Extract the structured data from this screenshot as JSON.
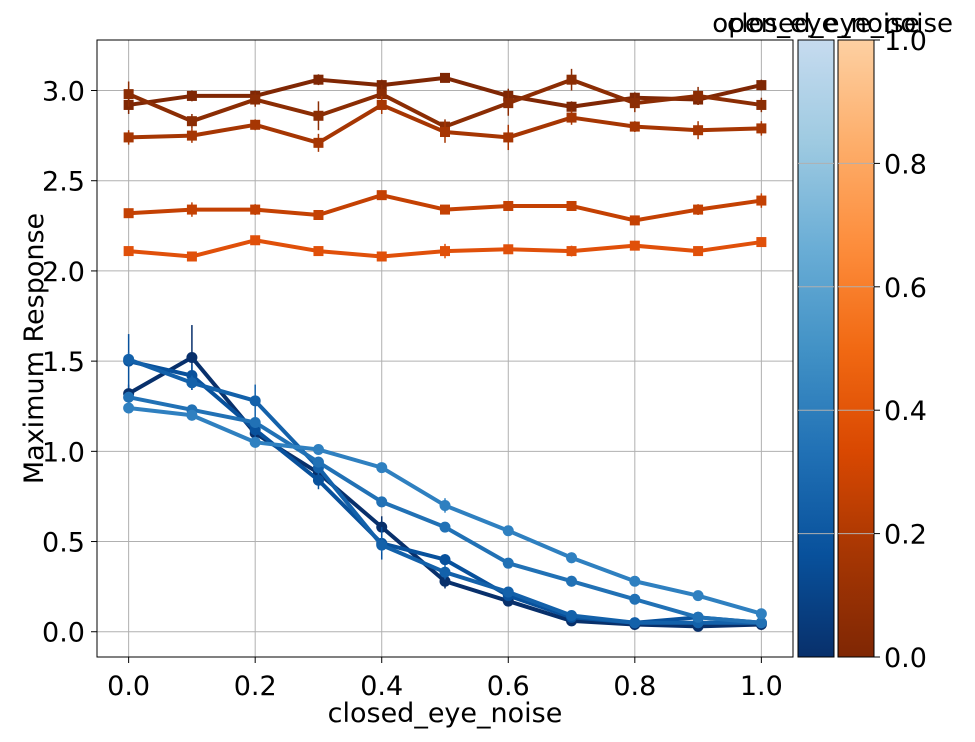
{
  "chart_data": {
    "type": "line",
    "xlabel": "closed_eye_noise",
    "ylabel": "Maximum Response",
    "xlim": [
      -0.05,
      1.05
    ],
    "ylim": [
      -0.14,
      3.28
    ],
    "x": [
      0.0,
      0.1,
      0.2,
      0.3,
      0.4,
      0.5,
      0.6,
      0.7,
      0.8,
      0.9,
      1.0
    ],
    "x_ticks": [
      "0.0",
      "0.2",
      "0.4",
      "0.6",
      "0.8",
      "1.0"
    ],
    "x_tick_values": [
      0.0,
      0.2,
      0.4,
      0.6,
      0.8,
      1.0
    ],
    "y_ticks": [
      "0.0",
      "0.5",
      "1.0",
      "1.5",
      "2.0",
      "2.5",
      "3.0"
    ],
    "y_tick_values": [
      0.0,
      0.5,
      1.0,
      1.5,
      2.0,
      2.5,
      3.0
    ],
    "grid": true,
    "colorbars": [
      {
        "label": "open_eye_noise",
        "range": [
          0.0,
          1.0
        ],
        "colormap": "Blues",
        "stops": [
          "#08306b",
          "#08519c",
          "#2171b5",
          "#4292c6",
          "#6baed6",
          "#9ecae1",
          "#c6dbef"
        ],
        "ticks": []
      },
      {
        "label": "closed_eye_noise",
        "range": [
          0.0,
          1.0
        ],
        "colormap": "Oranges",
        "stops": [
          "#7f2704",
          "#a63603",
          "#d94801",
          "#f16913",
          "#fd8d3c",
          "#fdae6b",
          "#fdd0a2"
        ],
        "ticks": [
          "0.0",
          "0.2",
          "0.4",
          "0.6",
          "0.8",
          "1.0"
        ],
        "tick_values": [
          0.0,
          0.2,
          0.4,
          0.6,
          0.8,
          1.0
        ]
      }
    ],
    "series": [
      {
        "color": "#7f2704",
        "marker": "square",
        "values": [
          2.92,
          2.97,
          2.97,
          3.06,
          3.03,
          3.07,
          2.97,
          2.91,
          2.96,
          2.95,
          3.03
        ],
        "errors": [
          0.05,
          0.03,
          0.03,
          0.03,
          0.03,
          0.02,
          0.04,
          0.03,
          0.03,
          0.03,
          0.03
        ]
      },
      {
        "color": "#8b2d04",
        "marker": "square",
        "values": [
          2.98,
          2.83,
          2.95,
          2.86,
          2.98,
          2.8,
          2.93,
          3.06,
          2.93,
          2.97,
          2.92
        ],
        "errors": [
          0.07,
          0.04,
          0.04,
          0.08,
          0.05,
          0.04,
          0.07,
          0.06,
          0.05,
          0.05,
          0.04
        ]
      },
      {
        "color": "#a63603",
        "marker": "square",
        "values": [
          2.74,
          2.75,
          2.81,
          2.71,
          2.92,
          2.77,
          2.74,
          2.85,
          2.8,
          2.78,
          2.79
        ],
        "errors": [
          0.04,
          0.04,
          0.03,
          0.05,
          0.05,
          0.06,
          0.07,
          0.04,
          0.03,
          0.05,
          0.04
        ]
      },
      {
        "color": "#c44103",
        "marker": "square",
        "values": [
          2.32,
          2.34,
          2.34,
          2.31,
          2.42,
          2.34,
          2.36,
          2.36,
          2.28,
          2.34,
          2.39
        ],
        "errors": [
          0.02,
          0.04,
          0.03,
          0.02,
          0.02,
          0.02,
          0.02,
          0.02,
          0.02,
          0.03,
          0.04
        ]
      },
      {
        "color": "#e0500a",
        "marker": "square",
        "values": [
          2.11,
          2.08,
          2.17,
          2.11,
          2.08,
          2.11,
          2.12,
          2.11,
          2.14,
          2.11,
          2.16
        ],
        "errors": [
          0.02,
          0.02,
          0.02,
          0.02,
          0.02,
          0.04,
          0.02,
          0.03,
          0.02,
          0.02,
          0.02
        ]
      },
      {
        "color": "#08306b",
        "marker": "circle",
        "values": [
          1.32,
          1.52,
          1.1,
          0.88,
          0.58,
          0.28,
          0.17,
          0.06,
          0.04,
          0.03,
          0.04
        ],
        "errors": [
          0.05,
          0.18,
          0.05,
          0.05,
          0.06,
          0.04,
          0.02,
          0.02,
          0.01,
          0.01,
          0.01
        ]
      },
      {
        "color": "#08519c",
        "marker": "circle",
        "values": [
          1.5,
          1.42,
          1.12,
          0.84,
          0.49,
          0.4,
          0.2,
          0.08,
          0.05,
          0.08,
          0.05
        ],
        "errors": [
          0.15,
          0.06,
          0.05,
          0.05,
          0.09,
          0.03,
          0.02,
          0.02,
          0.02,
          0.02,
          0.01
        ]
      },
      {
        "color": "#1361aa",
        "marker": "circle",
        "values": [
          1.51,
          1.38,
          1.28,
          0.91,
          0.48,
          0.33,
          0.22,
          0.09,
          0.05,
          0.05,
          0.05
        ],
        "errors": [
          0.04,
          0.04,
          0.09,
          0.04,
          0.04,
          0.04,
          0.02,
          0.02,
          0.01,
          0.01,
          0.01
        ]
      },
      {
        "color": "#2171b5",
        "marker": "circle",
        "values": [
          1.3,
          1.23,
          1.16,
          0.94,
          0.72,
          0.58,
          0.38,
          0.28,
          0.18,
          0.08,
          0.05
        ],
        "errors": [
          0.03,
          0.03,
          0.03,
          0.03,
          0.03,
          0.02,
          0.02,
          0.03,
          0.02,
          0.01,
          0.01
        ]
      },
      {
        "color": "#2f80c0",
        "marker": "circle",
        "values": [
          1.24,
          1.2,
          1.05,
          1.01,
          0.91,
          0.7,
          0.56,
          0.41,
          0.28,
          0.2,
          0.1
        ],
        "errors": [
          0.03,
          0.03,
          0.03,
          0.02,
          0.02,
          0.04,
          0.02,
          0.03,
          0.02,
          0.02,
          0.02
        ]
      }
    ]
  }
}
